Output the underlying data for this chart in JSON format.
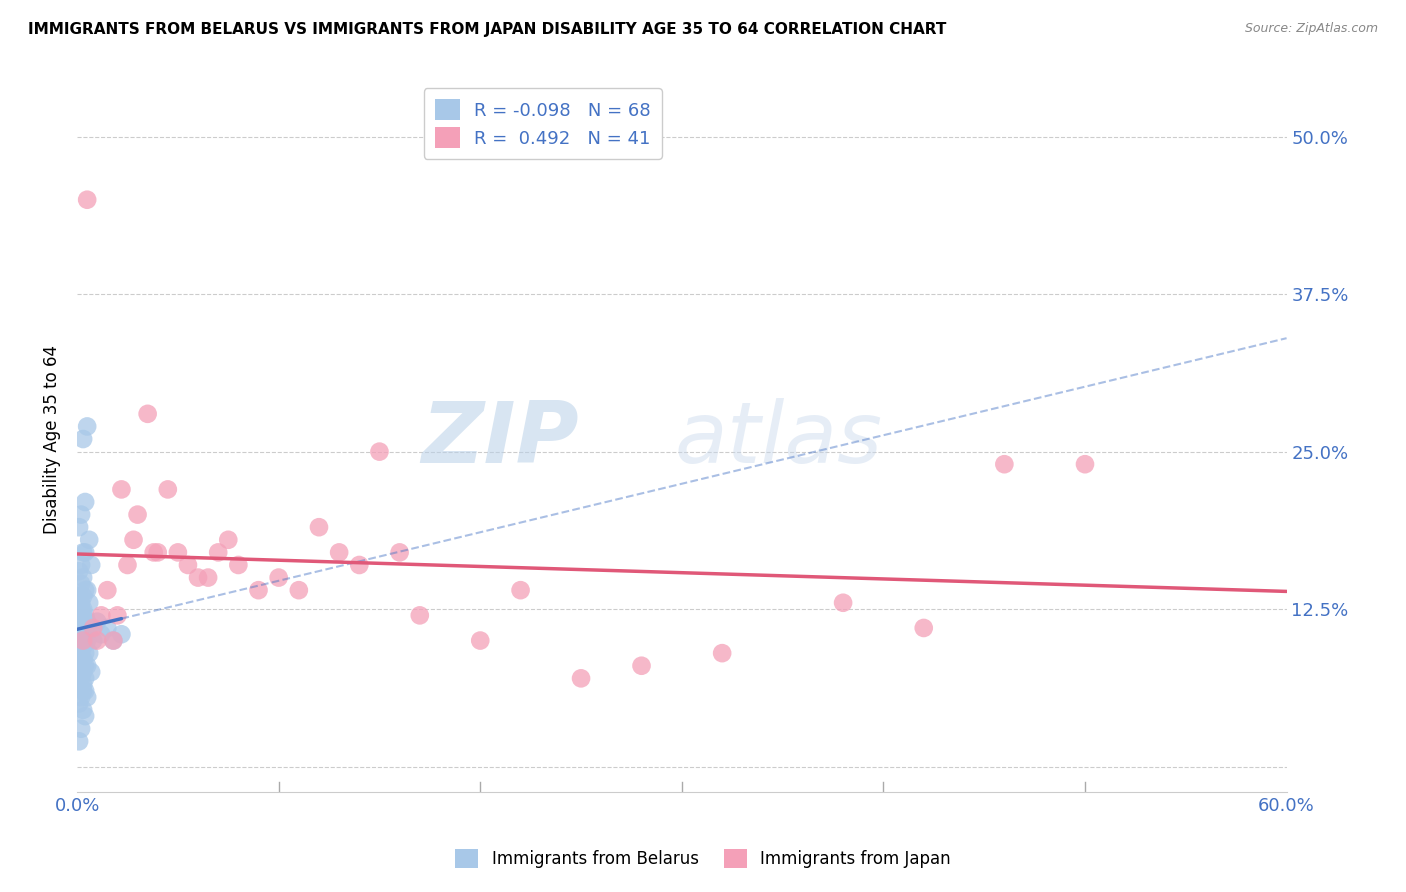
{
  "title": "IMMIGRANTS FROM BELARUS VS IMMIGRANTS FROM JAPAN DISABILITY AGE 35 TO 64 CORRELATION CHART",
  "source": "Source: ZipAtlas.com",
  "ylabel": "Disability Age 35 to 64",
  "xlim": [
    0.0,
    0.6
  ],
  "ylim": [
    -0.02,
    0.54
  ],
  "xticks": [
    0.0,
    0.1,
    0.2,
    0.3,
    0.4,
    0.5,
    0.6
  ],
  "xtick_labels": [
    "0.0%",
    "",
    "",
    "",
    "",
    "",
    "60.0%"
  ],
  "ytick_labels": [
    "",
    "12.5%",
    "25.0%",
    "37.5%",
    "50.0%"
  ],
  "yticks": [
    0.0,
    0.125,
    0.25,
    0.375,
    0.5
  ],
  "watermark_zip": "ZIP",
  "watermark_atlas": "atlas",
  "legend_r_belarus": "-0.098",
  "legend_n_belarus": "68",
  "legend_r_japan": " 0.492",
  "legend_n_japan": "41",
  "color_belarus": "#a8c8e8",
  "color_japan": "#f4a0b8",
  "color_line_belarus": "#4472C4",
  "color_line_japan": "#e05878",
  "belarus_scatter_x": [
    0.003,
    0.005,
    0.002,
    0.004,
    0.001,
    0.006,
    0.003,
    0.002,
    0.007,
    0.004,
    0.001,
    0.003,
    0.002,
    0.005,
    0.004,
    0.003,
    0.001,
    0.002,
    0.006,
    0.003,
    0.002,
    0.004,
    0.003,
    0.001,
    0.005,
    0.002,
    0.004,
    0.003,
    0.006,
    0.002,
    0.001,
    0.003,
    0.004,
    0.002,
    0.005,
    0.001,
    0.003,
    0.002,
    0.004,
    0.001,
    0.006,
    0.003,
    0.002,
    0.004,
    0.001,
    0.005,
    0.003,
    0.002,
    0.007,
    0.004,
    0.002,
    0.003,
    0.001,
    0.004,
    0.003,
    0.002,
    0.005,
    0.001,
    0.003,
    0.004,
    0.008,
    0.01,
    0.012,
    0.015,
    0.018,
    0.022,
    0.002,
    0.001
  ],
  "belarus_scatter_y": [
    0.26,
    0.27,
    0.2,
    0.21,
    0.19,
    0.18,
    0.17,
    0.16,
    0.16,
    0.17,
    0.155,
    0.15,
    0.145,
    0.14,
    0.14,
    0.135,
    0.135,
    0.13,
    0.13,
    0.125,
    0.125,
    0.12,
    0.12,
    0.12,
    0.115,
    0.115,
    0.11,
    0.11,
    0.11,
    0.105,
    0.105,
    0.1,
    0.1,
    0.1,
    0.1,
    0.095,
    0.095,
    0.09,
    0.09,
    0.09,
    0.09,
    0.085,
    0.085,
    0.08,
    0.08,
    0.08,
    0.075,
    0.075,
    0.075,
    0.07,
    0.07,
    0.065,
    0.065,
    0.06,
    0.06,
    0.055,
    0.055,
    0.05,
    0.045,
    0.04,
    0.1,
    0.115,
    0.105,
    0.11,
    0.1,
    0.105,
    0.03,
    0.02
  ],
  "japan_scatter_x": [
    0.003,
    0.005,
    0.008,
    0.01,
    0.012,
    0.015,
    0.018,
    0.02,
    0.022,
    0.025,
    0.028,
    0.03,
    0.035,
    0.038,
    0.04,
    0.045,
    0.05,
    0.055,
    0.06,
    0.065,
    0.07,
    0.075,
    0.08,
    0.09,
    0.1,
    0.11,
    0.12,
    0.13,
    0.14,
    0.15,
    0.16,
    0.17,
    0.2,
    0.22,
    0.25,
    0.28,
    0.32,
    0.38,
    0.42,
    0.46,
    0.5
  ],
  "japan_scatter_y": [
    0.1,
    0.45,
    0.11,
    0.1,
    0.12,
    0.14,
    0.1,
    0.12,
    0.22,
    0.16,
    0.18,
    0.2,
    0.28,
    0.17,
    0.17,
    0.22,
    0.17,
    0.16,
    0.15,
    0.15,
    0.17,
    0.18,
    0.16,
    0.14,
    0.15,
    0.14,
    0.19,
    0.17,
    0.16,
    0.25,
    0.17,
    0.12,
    0.1,
    0.14,
    0.07,
    0.08,
    0.09,
    0.13,
    0.11,
    0.24,
    0.24
  ]
}
